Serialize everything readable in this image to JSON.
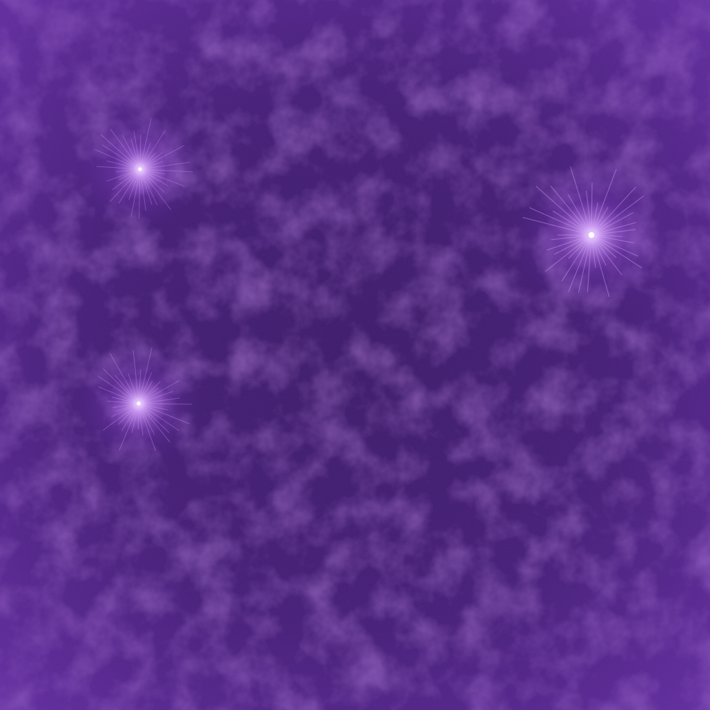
{
  "scene": {
    "colors": {
      "background_deep": "#3a1966",
      "background_edge": "#5a2a96",
      "mottle": "#6a32a8",
      "star_glow": "#b46ef0",
      "star_core": "#ffffff"
    },
    "stars": [
      {
        "name": "sparkle-star-upper-left",
        "icon": "sparkle-icon"
      },
      {
        "name": "sparkle-star-right",
        "icon": "sparkle-icon"
      },
      {
        "name": "sparkle-star-lower-left",
        "icon": "sparkle-icon"
      }
    ]
  }
}
